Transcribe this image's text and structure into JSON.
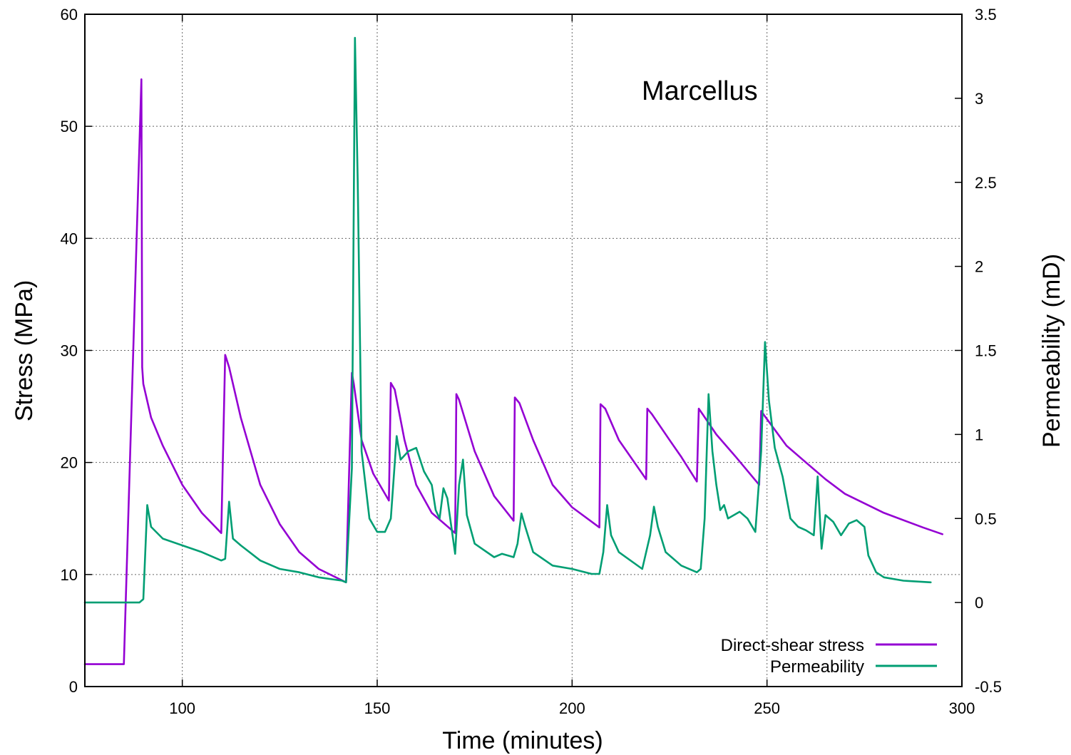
{
  "chart_data": {
    "type": "line",
    "title": "",
    "annotation": "Marcellus",
    "xlabel": "Time (minutes)",
    "ylabel": "Stress (MPa)",
    "y2label": "Permeability (mD)",
    "xlim": [
      75,
      300
    ],
    "ylim": [
      0,
      60
    ],
    "y2lim": [
      -0.5,
      3.5
    ],
    "xticks": [
      "100",
      "150",
      "200",
      "250",
      "300"
    ],
    "yticks": [
      "0",
      "10",
      "20",
      "30",
      "40",
      "50",
      "60"
    ],
    "y2ticks": [
      "-0.5",
      "0",
      "0.5",
      "1",
      "1.5",
      "2",
      "2.5",
      "3",
      "3.5"
    ],
    "grid": true,
    "legend_position": "bottom-right",
    "colors": {
      "stress": "#9400d3",
      "perm": "#009e73"
    },
    "series": [
      {
        "name": "Direct-shear stress",
        "axis": "left",
        "points": [
          [
            75,
            2
          ],
          [
            85,
            2
          ],
          [
            89.5,
            54.2
          ],
          [
            89.7,
            28.5
          ],
          [
            90,
            27
          ],
          [
            92,
            24
          ],
          [
            95,
            21.5
          ],
          [
            100,
            18
          ],
          [
            105,
            15.5
          ],
          [
            110,
            13.7
          ],
          [
            111,
            29.6
          ],
          [
            112,
            28.5
          ],
          [
            115,
            24
          ],
          [
            120,
            18
          ],
          [
            125,
            14.5
          ],
          [
            130,
            12
          ],
          [
            135,
            10.5
          ],
          [
            142,
            9.3
          ],
          [
            143.5,
            28
          ],
          [
            144,
            27
          ],
          [
            146,
            22
          ],
          [
            149,
            19
          ],
          [
            153,
            16.6
          ],
          [
            153.5,
            27.1
          ],
          [
            154.5,
            26.5
          ],
          [
            157,
            22
          ],
          [
            160,
            18
          ],
          [
            164,
            15.5
          ],
          [
            170,
            13.7
          ],
          [
            170.3,
            26.1
          ],
          [
            171,
            25.6
          ],
          [
            175,
            21
          ],
          [
            180,
            17
          ],
          [
            185,
            14.8
          ],
          [
            185.3,
            25.8
          ],
          [
            186.5,
            25.3
          ],
          [
            190,
            22
          ],
          [
            195,
            18
          ],
          [
            200,
            16
          ],
          [
            207,
            14.2
          ],
          [
            207.3,
            25.2
          ],
          [
            208.5,
            24.8
          ],
          [
            212,
            22
          ],
          [
            216,
            20
          ],
          [
            219,
            18.5
          ],
          [
            219.3,
            24.8
          ],
          [
            220.5,
            24.3
          ],
          [
            225,
            22
          ],
          [
            228,
            20.5
          ],
          [
            232,
            18.3
          ],
          [
            232.5,
            24.8
          ],
          [
            233.5,
            24.3
          ],
          [
            237,
            22.5
          ],
          [
            242,
            20.5
          ],
          [
            248,
            18
          ],
          [
            248.5,
            24.6
          ],
          [
            249.5,
            24.1
          ],
          [
            255,
            21.5
          ],
          [
            260,
            20
          ],
          [
            265,
            18.5
          ],
          [
            270,
            17.2
          ],
          [
            280,
            15.5
          ],
          [
            290,
            14.2
          ],
          [
            295,
            13.6
          ]
        ]
      },
      {
        "name": "Permeability",
        "axis": "right",
        "points": [
          [
            75,
            0
          ],
          [
            89,
            0
          ],
          [
            90,
            0.02
          ],
          [
            91,
            0.58
          ],
          [
            92,
            0.45
          ],
          [
            95,
            0.38
          ],
          [
            100,
            0.34
          ],
          [
            105,
            0.3
          ],
          [
            110,
            0.25
          ],
          [
            111,
            0.26
          ],
          [
            112,
            0.6
          ],
          [
            113,
            0.38
          ],
          [
            115,
            0.34
          ],
          [
            120,
            0.25
          ],
          [
            125,
            0.2
          ],
          [
            130,
            0.18
          ],
          [
            135,
            0.15
          ],
          [
            141,
            0.13
          ],
          [
            142,
            0.12
          ],
          [
            143.5,
            0.8
          ],
          [
            144.3,
            3.36
          ],
          [
            145,
            2.5
          ],
          [
            146,
            0.9
          ],
          [
            148,
            0.5
          ],
          [
            150,
            0.42
          ],
          [
            152,
            0.42
          ],
          [
            153.5,
            0.5
          ],
          [
            155,
            0.99
          ],
          [
            156,
            0.85
          ],
          [
            158,
            0.9
          ],
          [
            160,
            0.92
          ],
          [
            162,
            0.78
          ],
          [
            164,
            0.7
          ],
          [
            165,
            0.55
          ],
          [
            166,
            0.5
          ],
          [
            167,
            0.68
          ],
          [
            168,
            0.62
          ],
          [
            170,
            0.29
          ],
          [
            171,
            0.7
          ],
          [
            172,
            0.85
          ],
          [
            173,
            0.52
          ],
          [
            175,
            0.35
          ],
          [
            180,
            0.27
          ],
          [
            182,
            0.29
          ],
          [
            185,
            0.27
          ],
          [
            186,
            0.35
          ],
          [
            187,
            0.53
          ],
          [
            188,
            0.45
          ],
          [
            190,
            0.3
          ],
          [
            195,
            0.22
          ],
          [
            200,
            0.2
          ],
          [
            205,
            0.17
          ],
          [
            207,
            0.17
          ],
          [
            208,
            0.3
          ],
          [
            209,
            0.58
          ],
          [
            210,
            0.4
          ],
          [
            212,
            0.3
          ],
          [
            218,
            0.2
          ],
          [
            220,
            0.4
          ],
          [
            221,
            0.57
          ],
          [
            222,
            0.45
          ],
          [
            224,
            0.3
          ],
          [
            228,
            0.22
          ],
          [
            232,
            0.18
          ],
          [
            233,
            0.2
          ],
          [
            234,
            0.5
          ],
          [
            235,
            1.24
          ],
          [
            236,
            0.9
          ],
          [
            237,
            0.7
          ],
          [
            238,
            0.55
          ],
          [
            239,
            0.58
          ],
          [
            240,
            0.5
          ],
          [
            243,
            0.54
          ],
          [
            245,
            0.5
          ],
          [
            247,
            0.42
          ],
          [
            248.5,
            0.9
          ],
          [
            249.5,
            1.55
          ],
          [
            250.5,
            1.2
          ],
          [
            252,
            0.92
          ],
          [
            254,
            0.75
          ],
          [
            256,
            0.5
          ],
          [
            258,
            0.45
          ],
          [
            260,
            0.43
          ],
          [
            262,
            0.4
          ],
          [
            263,
            0.75
          ],
          [
            264,
            0.32
          ],
          [
            265,
            0.52
          ],
          [
            267,
            0.48
          ],
          [
            269,
            0.4
          ],
          [
            271,
            0.47
          ],
          [
            273,
            0.49
          ],
          [
            275,
            0.45
          ],
          [
            276,
            0.28
          ],
          [
            278,
            0.18
          ],
          [
            280,
            0.15
          ],
          [
            285,
            0.13
          ],
          [
            292,
            0.12
          ]
        ]
      }
    ]
  }
}
